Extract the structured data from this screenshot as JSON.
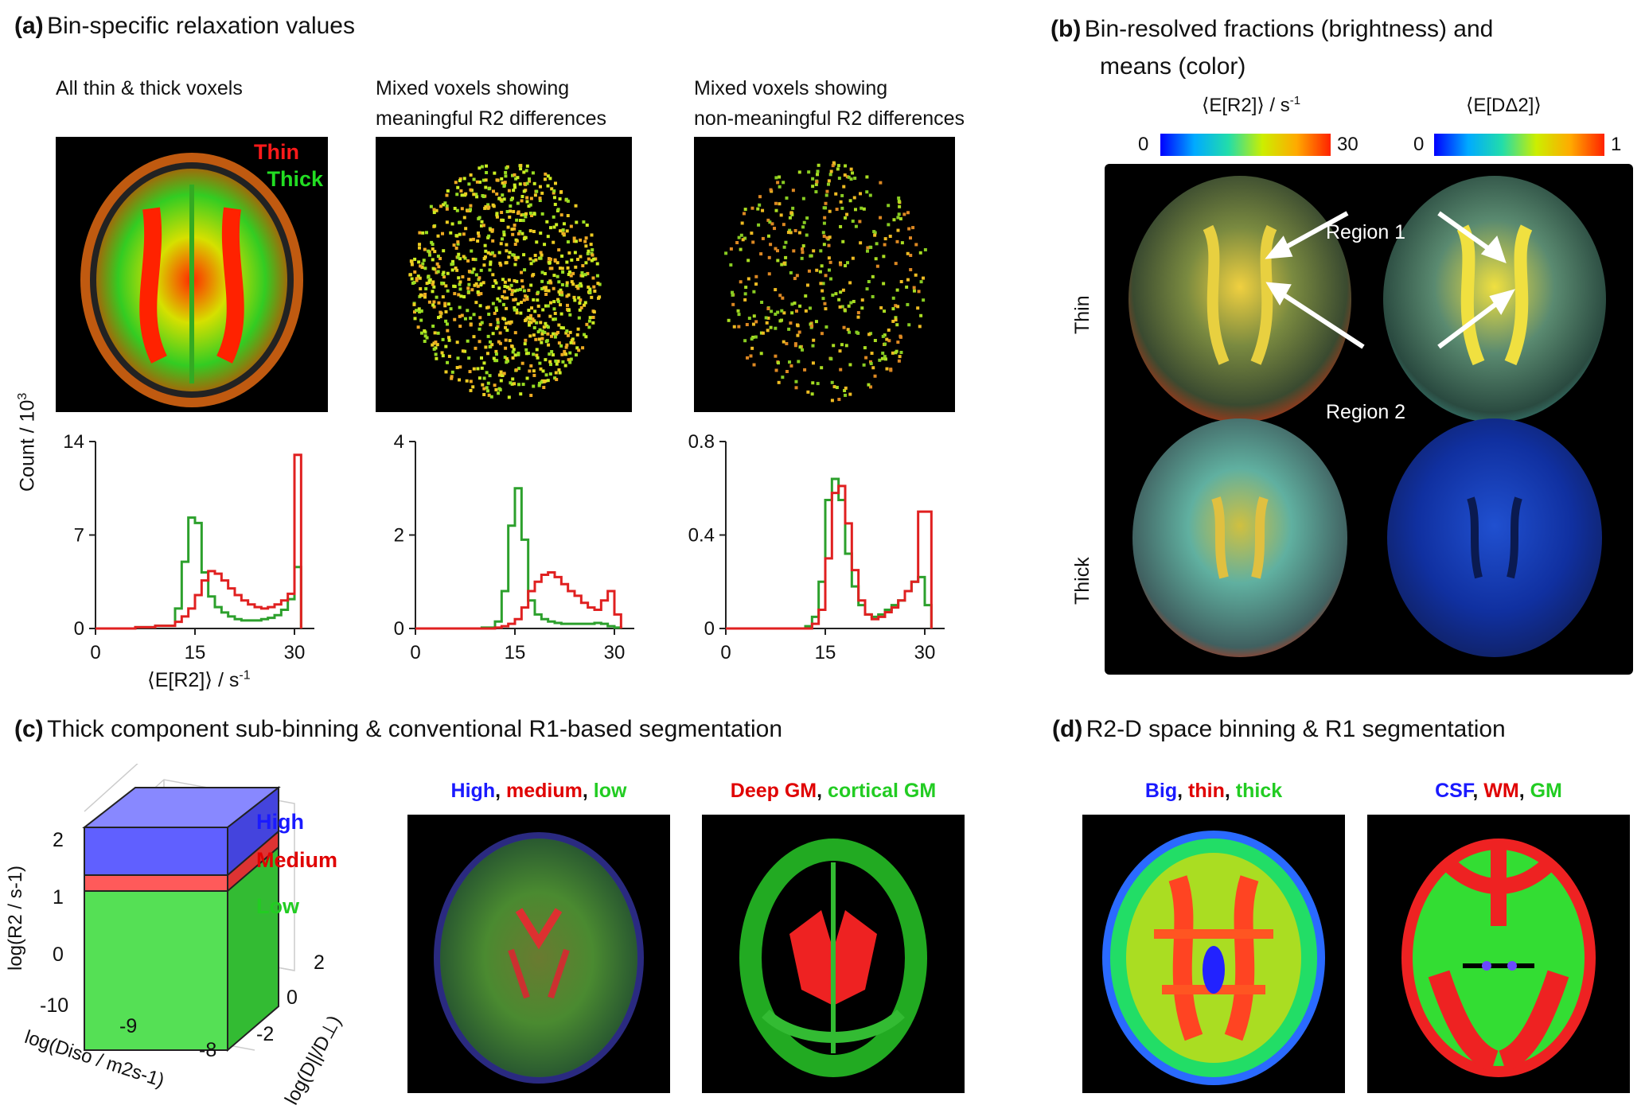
{
  "panels": {
    "a": {
      "label": "(a)",
      "title": "Bin-specific relaxation values",
      "col_titles": [
        [
          "All thin & thick voxels",
          ""
        ],
        [
          "Mixed voxels showing",
          "meaningful R2 differences"
        ],
        [
          "Mixed voxels showing",
          "non-meaningful R2 differences"
        ]
      ],
      "overlay_thin": "Thin",
      "overlay_thick": "Thick",
      "ylabel": "Count / 10",
      "ylabel_sup": "3",
      "xlabel": "⟨E[R2]⟩ / s",
      "xlabel_sup": "-1"
    },
    "b": {
      "label": "(b)",
      "title_line1": "Bin-resolved fractions (brightness) and",
      "title_line2": "means (color)",
      "cbar1_label": "⟨E[R2]⟩ / s",
      "cbar1_sup": "-1",
      "cbar1_min": "0",
      "cbar1_max": "30",
      "cbar2_label": "⟨E[DΔ2]⟩",
      "cbar2_min": "0",
      "cbar2_max": "1",
      "row_thin": "Thin",
      "row_thick": "Thick",
      "region1": "Region 1",
      "region2": "Region 2"
    },
    "c": {
      "label": "(c)",
      "title": "Thick component sub-binning & conventional R1-based segmentation",
      "box_high": "High",
      "box_medium": "Medium",
      "box_low": "Low",
      "zlabel": "log(R2 / s-1)",
      "xlabel": "log(Diso / m2s-1)",
      "ylabel": "log(D||/D⊥)",
      "z_ticks": [
        "2",
        "1",
        "0"
      ],
      "x_ticks": [
        "-10",
        "-9",
        "-8"
      ],
      "y_ticks": [
        "2",
        "0",
        "-2"
      ],
      "img1_header": [
        {
          "text": "High",
          "color": "#1a1aff"
        },
        {
          "text": ", ",
          "color": "#111111"
        },
        {
          "text": "medium",
          "color": "#e00000"
        },
        {
          "text": ", ",
          "color": "#111111"
        },
        {
          "text": "low",
          "color": "#22cc22"
        }
      ],
      "img2_header": [
        {
          "text": "Deep GM",
          "color": "#e00000"
        },
        {
          "text": ", ",
          "color": "#111111"
        },
        {
          "text": "cortical GM",
          "color": "#22cc22"
        }
      ]
    },
    "d": {
      "label": "(d)",
      "title": "R2-D space binning & R1 segmentation",
      "img1_header": [
        {
          "text": "Big",
          "color": "#1a1aff"
        },
        {
          "text": ",  ",
          "color": "#111111"
        },
        {
          "text": "thin",
          "color": "#e00000"
        },
        {
          "text": ",  ",
          "color": "#111111"
        },
        {
          "text": "thick",
          "color": "#22cc22"
        }
      ],
      "img2_header": [
        {
          "text": "CSF",
          "color": "#1a1aff"
        },
        {
          "text": ", ",
          "color": "#111111"
        },
        {
          "text": "WM",
          "color": "#e00000"
        },
        {
          "text": ", ",
          "color": "#111111"
        },
        {
          "text": "GM",
          "color": "#22cc22"
        }
      ]
    }
  },
  "chart_data": [
    {
      "type": "line",
      "name": "all-thin-thick-histogram",
      "xlabel": "⟨E[R2]⟩ / s-1",
      "ylabel": "Count / 10^3",
      "xlim": [
        0,
        33
      ],
      "ylim": [
        0,
        14
      ],
      "xticks": [
        0,
        15,
        30
      ],
      "yticks": [
        0,
        7,
        14
      ],
      "x": [
        0,
        3,
        6,
        9,
        12,
        13,
        14,
        15,
        16,
        17,
        18,
        19,
        20,
        21,
        22,
        23,
        24,
        25,
        26,
        27,
        28,
        29,
        30,
        31
      ],
      "series": [
        {
          "name": "Thick",
          "color": "#2ca02c",
          "values": [
            0,
            0,
            0.1,
            0.2,
            1.5,
            5.0,
            8.3,
            7.9,
            4.2,
            2.4,
            1.6,
            1.2,
            0.9,
            0.7,
            0.6,
            0.6,
            0.6,
            0.7,
            0.8,
            1.0,
            1.4,
            2.2,
            4.6,
            0
          ]
        },
        {
          "name": "Thin",
          "color": "#e02020",
          "values": [
            0,
            0,
            0.1,
            0.2,
            0.5,
            0.9,
            1.5,
            2.5,
            3.6,
            4.3,
            4.1,
            3.6,
            3.0,
            2.5,
            2.1,
            1.8,
            1.6,
            1.5,
            1.6,
            1.8,
            2.1,
            2.6,
            13.0,
            0
          ]
        }
      ]
    },
    {
      "type": "line",
      "name": "meaningful-histogram",
      "xlim": [
        0,
        33
      ],
      "ylim": [
        0,
        4
      ],
      "xticks": [
        0,
        15,
        30
      ],
      "yticks": [
        0,
        2,
        4
      ],
      "x": [
        0,
        6,
        10,
        12,
        13,
        14,
        15,
        16,
        17,
        18,
        19,
        20,
        21,
        22,
        23,
        24,
        25,
        26,
        27,
        28,
        29,
        30,
        31
      ],
      "series": [
        {
          "name": "Thick",
          "color": "#2ca02c",
          "values": [
            0,
            0,
            0.02,
            0.15,
            0.8,
            2.2,
            3.0,
            1.9,
            0.6,
            0.3,
            0.2,
            0.15,
            0.12,
            0.1,
            0.1,
            0.1,
            0.1,
            0.1,
            0.12,
            0.1,
            0.05,
            0.02,
            0
          ]
        },
        {
          "name": "Thin",
          "color": "#e02020",
          "values": [
            0,
            0,
            0.0,
            0.02,
            0.05,
            0.1,
            0.2,
            0.45,
            0.8,
            1.0,
            1.15,
            1.2,
            1.1,
            0.95,
            0.8,
            0.7,
            0.55,
            0.45,
            0.4,
            0.6,
            0.8,
            0.3,
            0
          ]
        }
      ]
    },
    {
      "type": "line",
      "name": "non-meaningful-histogram",
      "xlim": [
        0,
        33
      ],
      "ylim": [
        0,
        0.8
      ],
      "xticks": [
        0,
        15,
        30
      ],
      "yticks": [
        0,
        0.4,
        0.8
      ],
      "x": [
        0,
        6,
        10,
        12,
        13,
        14,
        15,
        16,
        17,
        18,
        19,
        20,
        21,
        22,
        23,
        24,
        25,
        26,
        27,
        28,
        29,
        30,
        31
      ],
      "series": [
        {
          "name": "Thick",
          "color": "#2ca02c",
          "values": [
            0,
            0,
            0,
            0.01,
            0.05,
            0.2,
            0.55,
            0.64,
            0.55,
            0.32,
            0.18,
            0.1,
            0.06,
            0.05,
            0.06,
            0.08,
            0.1,
            0.12,
            0.16,
            0.2,
            0.22,
            0.1,
            0
          ]
        },
        {
          "name": "Thin",
          "color": "#e02020",
          "values": [
            0,
            0,
            0,
            0.0,
            0.02,
            0.08,
            0.3,
            0.58,
            0.61,
            0.45,
            0.25,
            0.12,
            0.06,
            0.04,
            0.05,
            0.07,
            0.09,
            0.12,
            0.16,
            0.2,
            0.5,
            0.5,
            0
          ]
        }
      ]
    }
  ]
}
